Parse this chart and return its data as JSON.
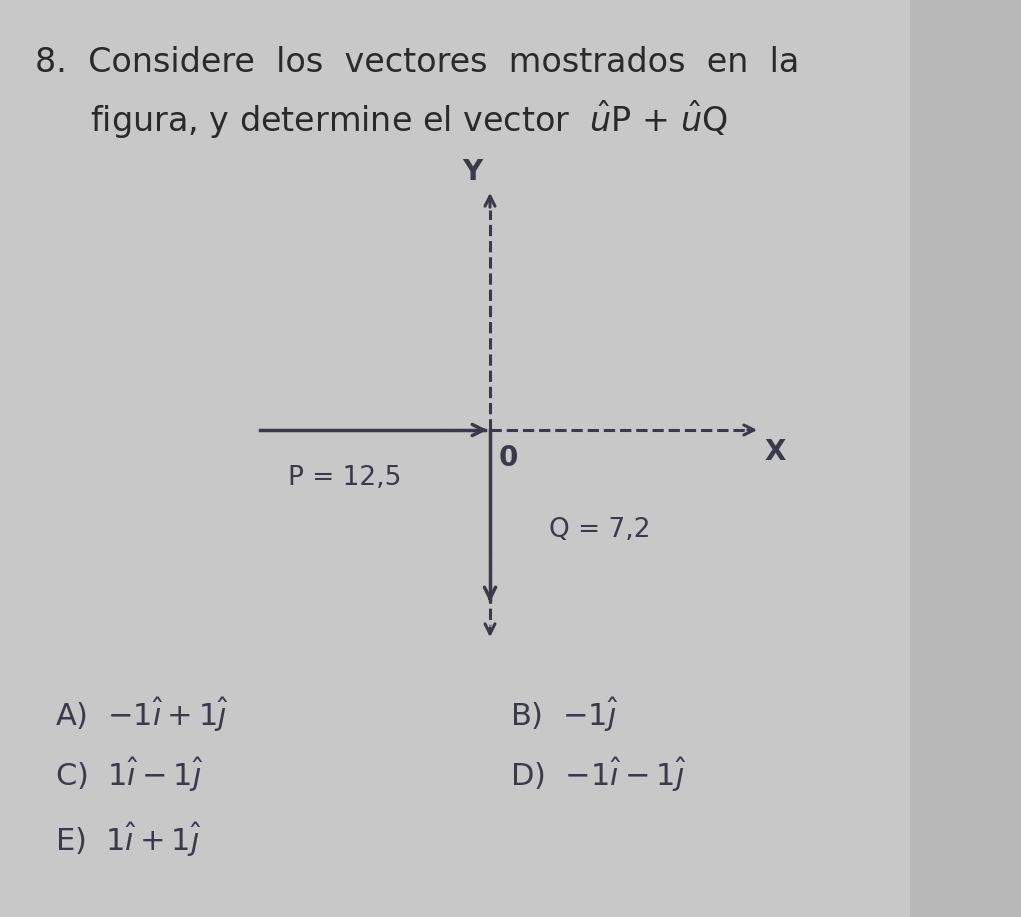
{
  "bg_color": "#c8c8c8",
  "text_color": "#2a2a2a",
  "dark_color": "#3a3a4a",
  "vector_P_label": "P = 12,5",
  "vector_Q_label": "Q = 7,2",
  "origin_label": "0",
  "x_label": "X",
  "y_label": "Y",
  "answer_A": "A)  -1$\\hat{\\imath}$ + 1$\\hat{\\jmath}$",
  "answer_B": "B)  -1$\\hat{\\jmath}$",
  "answer_C": "C)  1$\\hat{\\imath}$ − 1$\\hat{\\jmath}$",
  "answer_D": "D)  -1$\\hat{\\imath}$ − 1$\\hat{\\jmath}$",
  "answer_E": "E)  1$\\hat{\\imath}$ + 1$\\hat{\\jmath}$"
}
